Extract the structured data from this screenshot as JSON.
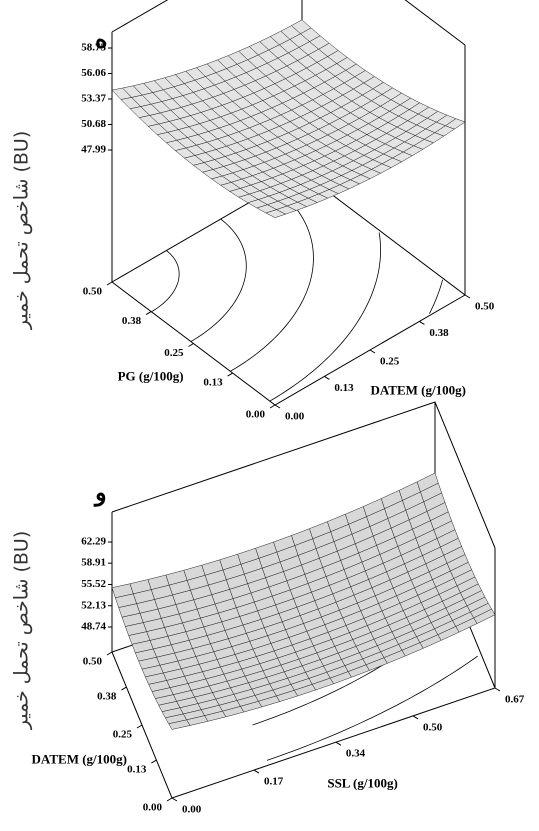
{
  "chart_data": [
    {
      "type": "surface",
      "panel_label": "ه",
      "z_label": "شاخص تحمل خمیر (BU)",
      "x_label": "PG (g/100g)",
      "y_label": "DATEM (g/100g)",
      "xlim": [
        0,
        0.5
      ],
      "xticks": [
        {
          "value": 0,
          "label": "0.00"
        },
        0.13,
        0.25,
        0.38,
        {
          "value": 0.5,
          "label": "0.50"
        }
      ],
      "ylim": [
        0,
        0.5
      ],
      "yticks": [
        {
          "value": 0,
          "label": "0.00"
        },
        0.13,
        0.25,
        0.38,
        {
          "value": 0.5,
          "label": "0.50"
        }
      ],
      "zlim": [
        47.99,
        58.75
      ],
      "zticks": [
        47.99,
        50.68,
        53.37,
        56.06,
        58.75
      ]
    },
    {
      "type": "surface",
      "panel_label": "و",
      "z_label": "شاخص تحمل خمیر (BU)",
      "x_label": "DATEM (g/100g)",
      "y_label": "SSL (g/100g)",
      "xlim": [
        0,
        0.5
      ],
      "xticks": [
        {
          "value": 0,
          "label": "0.00"
        },
        0.13,
        0.25,
        0.38,
        {
          "value": 0.5,
          "label": "0.50"
        }
      ],
      "ylim": [
        0,
        0.67
      ],
      "yticks": [
        {
          "value": 0,
          "label": "0.00"
        },
        0.17,
        0.34,
        {
          "value": 0.5,
          "label": "0.50"
        },
        0.67
      ],
      "zlim": [
        48.74,
        62.29
      ],
      "zticks": [
        48.74,
        52.13,
        55.52,
        58.91,
        62.29
      ]
    }
  ]
}
